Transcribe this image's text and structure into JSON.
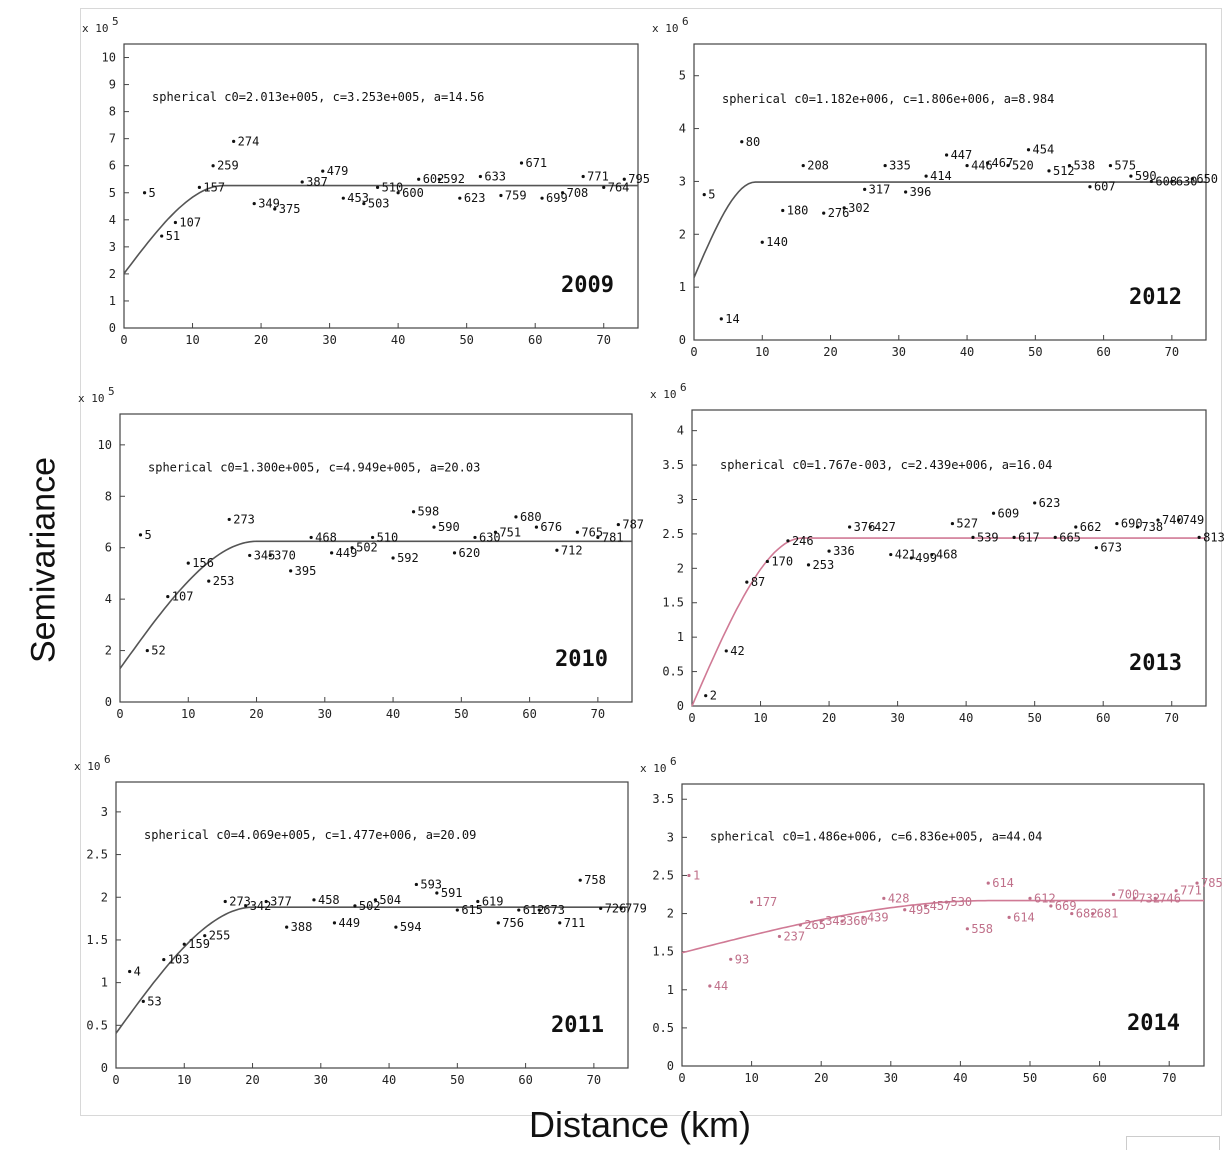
{
  "ylabel": "Semivariance",
  "xlabel": "Distance (km)",
  "colors": {
    "axis": "#444444",
    "black": "#111111",
    "pink": "#d07a95",
    "gray": "#555555"
  },
  "chart_data": [
    {
      "type": "scatter",
      "year": "2009",
      "multiplier": "x 10",
      "exponent": "5",
      "annotation": "spherical  c0=2.013e+005, c=3.253e+005, a=14.56",
      "xlim": [
        0,
        75
      ],
      "ylim": [
        0,
        10.5
      ],
      "xticks": [
        0,
        10,
        20,
        30,
        40,
        50,
        60,
        70
      ],
      "yticks": [
        0,
        1,
        2,
        3,
        4,
        5,
        6,
        7,
        8,
        9,
        10
      ],
      "ytick_labels": [
        "0",
        "1",
        "2",
        "3",
        "4",
        "5",
        "6",
        "7",
        "8",
        "9",
        "10"
      ],
      "model": {
        "c0": 2.013,
        "c": 3.253,
        "a": 14.56
      },
      "point_color": "#111111",
      "line_color": "#555555",
      "points": [
        {
          "label": "5",
          "x": 3,
          "y": 5.0
        },
        {
          "label": "51",
          "x": 5.5,
          "y": 3.4
        },
        {
          "label": "107",
          "x": 7.5,
          "y": 3.9
        },
        {
          "label": "157",
          "x": 11,
          "y": 5.2
        },
        {
          "label": "259",
          "x": 13,
          "y": 6.0
        },
        {
          "label": "274",
          "x": 16,
          "y": 6.9
        },
        {
          "label": "349",
          "x": 19,
          "y": 4.6
        },
        {
          "label": "375",
          "x": 22,
          "y": 4.4
        },
        {
          "label": "387",
          "x": 26,
          "y": 5.4
        },
        {
          "label": "479",
          "x": 29,
          "y": 5.8
        },
        {
          "label": "453",
          "x": 32,
          "y": 4.8
        },
        {
          "label": "503",
          "x": 35,
          "y": 4.6
        },
        {
          "label": "510",
          "x": 37,
          "y": 5.2
        },
        {
          "label": "600",
          "x": 40,
          "y": 5.0
        },
        {
          "label": "602",
          "x": 43,
          "y": 5.5
        },
        {
          "label": "592",
          "x": 46,
          "y": 5.5
        },
        {
          "label": "623",
          "x": 49,
          "y": 4.8
        },
        {
          "label": "633",
          "x": 52,
          "y": 5.6
        },
        {
          "label": "759",
          "x": 55,
          "y": 4.9
        },
        {
          "label": "671",
          "x": 58,
          "y": 6.1
        },
        {
          "label": "699",
          "x": 61,
          "y": 4.8
        },
        {
          "label": "708",
          "x": 64,
          "y": 5.0
        },
        {
          "label": "771",
          "x": 67,
          "y": 5.6
        },
        {
          "label": "764",
          "x": 70,
          "y": 5.2
        },
        {
          "label": "795",
          "x": 73,
          "y": 5.5
        }
      ]
    },
    {
      "type": "scatter",
      "year": "2012",
      "multiplier": "x 10",
      "exponent": "6",
      "annotation": "spherical  c0=1.182e+006, c=1.806e+006, a=8.984",
      "xlim": [
        0,
        75
      ],
      "ylim": [
        0,
        5.6
      ],
      "xticks": [
        0,
        10,
        20,
        30,
        40,
        50,
        60,
        70
      ],
      "yticks": [
        0,
        1,
        2,
        3,
        4,
        5
      ],
      "ytick_labels": [
        "0",
        "1",
        "2",
        "3",
        "4",
        "5"
      ],
      "model": {
        "c0": 1.182,
        "c": 1.806,
        "a": 8.984
      },
      "point_color": "#111111",
      "line_color": "#555555",
      "points": [
        {
          "label": "5",
          "x": 1.5,
          "y": 2.75
        },
        {
          "label": "14",
          "x": 4,
          "y": 0.4
        },
        {
          "label": "80",
          "x": 7,
          "y": 3.75
        },
        {
          "label": "140",
          "x": 10,
          "y": 1.85
        },
        {
          "label": "180",
          "x": 13,
          "y": 2.45
        },
        {
          "label": "208",
          "x": 16,
          "y": 3.3
        },
        {
          "label": "276",
          "x": 19,
          "y": 2.4
        },
        {
          "label": "302",
          "x": 22,
          "y": 2.5
        },
        {
          "label": "317",
          "x": 25,
          "y": 2.85
        },
        {
          "label": "335",
          "x": 28,
          "y": 3.3
        },
        {
          "label": "396",
          "x": 31,
          "y": 2.8
        },
        {
          "label": "414",
          "x": 34,
          "y": 3.1
        },
        {
          "label": "447",
          "x": 37,
          "y": 3.5
        },
        {
          "label": "446",
          "x": 40,
          "y": 3.3
        },
        {
          "label": "467",
          "x": 43,
          "y": 3.35
        },
        {
          "label": "520",
          "x": 46,
          "y": 3.3
        },
        {
          "label": "454",
          "x": 49,
          "y": 3.6
        },
        {
          "label": "512",
          "x": 52,
          "y": 3.2
        },
        {
          "label": "538",
          "x": 55,
          "y": 3.3
        },
        {
          "label": "607",
          "x": 58,
          "y": 2.9
        },
        {
          "label": "575",
          "x": 61,
          "y": 3.3
        },
        {
          "label": "590",
          "x": 64,
          "y": 3.1
        },
        {
          "label": "608",
          "x": 67,
          "y": 3.0
        },
        {
          "label": "630",
          "x": 70,
          "y": 3.0
        },
        {
          "label": "650",
          "x": 73,
          "y": 3.05
        }
      ]
    },
    {
      "type": "scatter",
      "year": "2010",
      "multiplier": "x 10",
      "exponent": "5",
      "annotation": "spherical  c0=1.300e+005, c=4.949e+005, a=20.03",
      "xlim": [
        0,
        75
      ],
      "ylim": [
        0,
        11.2
      ],
      "xticks": [
        0,
        10,
        20,
        30,
        40,
        50,
        60,
        70
      ],
      "yticks": [
        0,
        2,
        4,
        6,
        8,
        10
      ],
      "ytick_labels": [
        "0",
        "2",
        "4",
        "6",
        "8",
        "10"
      ],
      "model": {
        "c0": 1.3,
        "c": 4.949,
        "a": 20.03
      },
      "point_color": "#111111",
      "line_color": "#555555",
      "points": [
        {
          "label": "5",
          "x": 3,
          "y": 6.5
        },
        {
          "label": "52",
          "x": 4,
          "y": 2.0
        },
        {
          "label": "107",
          "x": 7,
          "y": 4.1
        },
        {
          "label": "156",
          "x": 10,
          "y": 5.4
        },
        {
          "label": "253",
          "x": 13,
          "y": 4.7
        },
        {
          "label": "273",
          "x": 16,
          "y": 7.1
        },
        {
          "label": "345",
          "x": 19,
          "y": 5.7
        },
        {
          "label": "370",
          "x": 22,
          "y": 5.7
        },
        {
          "label": "395",
          "x": 25,
          "y": 5.1
        },
        {
          "label": "468",
          "x": 28,
          "y": 6.4
        },
        {
          "label": "449",
          "x": 31,
          "y": 5.8
        },
        {
          "label": "502",
          "x": 34,
          "y": 6.0
        },
        {
          "label": "510",
          "x": 37,
          "y": 6.4
        },
        {
          "label": "592",
          "x": 40,
          "y": 5.6
        },
        {
          "label": "598",
          "x": 43,
          "y": 7.4
        },
        {
          "label": "590",
          "x": 46,
          "y": 6.8
        },
        {
          "label": "620",
          "x": 49,
          "y": 5.8
        },
        {
          "label": "630",
          "x": 52,
          "y": 6.4
        },
        {
          "label": "751",
          "x": 55,
          "y": 6.6
        },
        {
          "label": "680",
          "x": 58,
          "y": 7.2
        },
        {
          "label": "676",
          "x": 61,
          "y": 6.8
        },
        {
          "label": "712",
          "x": 64,
          "y": 5.9
        },
        {
          "label": "765",
          "x": 67,
          "y": 6.6
        },
        {
          "label": "781",
          "x": 70,
          "y": 6.4
        },
        {
          "label": "787",
          "x": 73,
          "y": 6.9
        }
      ]
    },
    {
      "type": "scatter",
      "year": "2013",
      "multiplier": "x 10",
      "exponent": "6",
      "annotation": "spherical  c0=1.767e-003, c=2.439e+006, a=16.04",
      "xlim": [
        0,
        75
      ],
      "ylim": [
        0,
        4.3
      ],
      "xticks": [
        0,
        10,
        20,
        30,
        40,
        50,
        60,
        70
      ],
      "yticks": [
        0,
        0.5,
        1,
        1.5,
        2,
        2.5,
        3,
        3.5,
        4
      ],
      "ytick_labels": [
        "0",
        "0.5",
        "1",
        "1.5",
        "2",
        "2.5",
        "3",
        "3.5",
        "4"
      ],
      "model": {
        "c0": 0.0,
        "c": 2.439,
        "a": 16.04
      },
      "point_color": "#111111",
      "line_color": "#d07a95",
      "points": [
        {
          "label": "2",
          "x": 2,
          "y": 0.15
        },
        {
          "label": "42",
          "x": 5,
          "y": 0.8
        },
        {
          "label": "87",
          "x": 8,
          "y": 1.8
        },
        {
          "label": "170",
          "x": 11,
          "y": 2.1
        },
        {
          "label": "246",
          "x": 14,
          "y": 2.4
        },
        {
          "label": "253",
          "x": 17,
          "y": 2.05
        },
        {
          "label": "336",
          "x": 20,
          "y": 2.25
        },
        {
          "label": "376",
          "x": 23,
          "y": 2.6
        },
        {
          "label": "427",
          "x": 26,
          "y": 2.6
        },
        {
          "label": "421",
          "x": 29,
          "y": 2.2
        },
        {
          "label": "499",
          "x": 32,
          "y": 2.15
        },
        {
          "label": "468",
          "x": 35,
          "y": 2.2
        },
        {
          "label": "527",
          "x": 38,
          "y": 2.65
        },
        {
          "label": "539",
          "x": 41,
          "y": 2.45
        },
        {
          "label": "609",
          "x": 44,
          "y": 2.8
        },
        {
          "label": "617",
          "x": 47,
          "y": 2.45
        },
        {
          "label": "623",
          "x": 50,
          "y": 2.95
        },
        {
          "label": "665",
          "x": 53,
          "y": 2.45
        },
        {
          "label": "662",
          "x": 56,
          "y": 2.6
        },
        {
          "label": "673",
          "x": 59,
          "y": 2.3
        },
        {
          "label": "690",
          "x": 62,
          "y": 2.65
        },
        {
          "label": "738",
          "x": 65,
          "y": 2.6
        },
        {
          "label": "740",
          "x": 68,
          "y": 2.7
        },
        {
          "label": "749",
          "x": 71,
          "y": 2.7
        },
        {
          "label": "813",
          "x": 74,
          "y": 2.45
        }
      ]
    },
    {
      "type": "scatter",
      "year": "2011",
      "multiplier": "x 10",
      "exponent": "6",
      "annotation": "spherical  c0=4.069e+005, c=1.477e+006, a=20.09",
      "xlim": [
        0,
        75
      ],
      "ylim": [
        0,
        3.35
      ],
      "xticks": [
        0,
        10,
        20,
        30,
        40,
        50,
        60,
        70
      ],
      "yticks": [
        0,
        0.5,
        1,
        1.5,
        2,
        2.5,
        3
      ],
      "ytick_labels": [
        "0",
        "0.5",
        "1",
        "1.5",
        "2",
        "2.5",
        "3"
      ],
      "model": {
        "c0": 0.4069,
        "c": 1.477,
        "a": 20.09
      },
      "point_color": "#111111",
      "line_color": "#555555",
      "points": [
        {
          "label": "4",
          "x": 2,
          "y": 1.13
        },
        {
          "label": "53",
          "x": 4,
          "y": 0.78
        },
        {
          "label": "103",
          "x": 7,
          "y": 1.27
        },
        {
          "label": "159",
          "x": 10,
          "y": 1.45
        },
        {
          "label": "255",
          "x": 13,
          "y": 1.55
        },
        {
          "label": "273",
          "x": 16,
          "y": 1.95
        },
        {
          "label": "342",
          "x": 19,
          "y": 1.9
        },
        {
          "label": "377",
          "x": 22,
          "y": 1.95
        },
        {
          "label": "388",
          "x": 25,
          "y": 1.65
        },
        {
          "label": "458",
          "x": 29,
          "y": 1.97
        },
        {
          "label": "449",
          "x": 32,
          "y": 1.7
        },
        {
          "label": "502",
          "x": 35,
          "y": 1.9
        },
        {
          "label": "504",
          "x": 38,
          "y": 1.97
        },
        {
          "label": "594",
          "x": 41,
          "y": 1.65
        },
        {
          "label": "593",
          "x": 44,
          "y": 2.15
        },
        {
          "label": "591",
          "x": 47,
          "y": 2.05
        },
        {
          "label": "615",
          "x": 50,
          "y": 1.85
        },
        {
          "label": "619",
          "x": 53,
          "y": 1.95
        },
        {
          "label": "756",
          "x": 56,
          "y": 1.7
        },
        {
          "label": "612",
          "x": 59,
          "y": 1.85
        },
        {
          "label": "673",
          "x": 62,
          "y": 1.85
        },
        {
          "label": "711",
          "x": 65,
          "y": 1.7
        },
        {
          "label": "758",
          "x": 68,
          "y": 2.2
        },
        {
          "label": "726",
          "x": 71,
          "y": 1.87
        },
        {
          "label": "779",
          "x": 74,
          "y": 1.87
        }
      ]
    },
    {
      "type": "scatter",
      "year": "2014",
      "multiplier": "x 10",
      "exponent": "6",
      "annotation": "spherical  c0=1.486e+006, c=6.836e+005, a=44.04",
      "xlim": [
        0,
        75
      ],
      "ylim": [
        0,
        3.7
      ],
      "xticks": [
        0,
        10,
        20,
        30,
        40,
        50,
        60,
        70
      ],
      "yticks": [
        0,
        0.5,
        1,
        1.5,
        2,
        2.5,
        3,
        3.5
      ],
      "ytick_labels": [
        "0",
        "0.5",
        "1",
        "1.5",
        "2",
        "2.5",
        "3",
        "3.5"
      ],
      "model": {
        "c0": 1.486,
        "c": 0.6836,
        "a": 44.04
      },
      "point_color": "#c0708a",
      "line_color": "#d07a95",
      "points": [
        {
          "label": "1",
          "x": 1,
          "y": 2.5
        },
        {
          "label": "44",
          "x": 4,
          "y": 1.05
        },
        {
          "label": "93",
          "x": 7,
          "y": 1.4
        },
        {
          "label": "177",
          "x": 10,
          "y": 2.15
        },
        {
          "label": "237",
          "x": 14,
          "y": 1.7
        },
        {
          "label": "265",
          "x": 17,
          "y": 1.85
        },
        {
          "label": "343",
          "x": 20,
          "y": 1.9
        },
        {
          "label": "360",
          "x": 23,
          "y": 1.9
        },
        {
          "label": "439",
          "x": 26,
          "y": 1.95
        },
        {
          "label": "428",
          "x": 29,
          "y": 2.2
        },
        {
          "label": "495",
          "x": 32,
          "y": 2.05
        },
        {
          "label": "457",
          "x": 35,
          "y": 2.1
        },
        {
          "label": "530",
          "x": 38,
          "y": 2.15
        },
        {
          "label": "558",
          "x": 41,
          "y": 1.8
        },
        {
          "label": "614",
          "x": 44,
          "y": 2.4
        },
        {
          "label": "614",
          "x": 47,
          "y": 1.95
        },
        {
          "label": "612",
          "x": 50,
          "y": 2.2
        },
        {
          "label": "669",
          "x": 53,
          "y": 2.1
        },
        {
          "label": "682",
          "x": 56,
          "y": 2.0
        },
        {
          "label": "681",
          "x": 59,
          "y": 2.0
        },
        {
          "label": "700",
          "x": 62,
          "y": 2.25
        },
        {
          "label": "732",
          "x": 65,
          "y": 2.2
        },
        {
          "label": "746",
          "x": 68,
          "y": 2.2
        },
        {
          "label": "771",
          "x": 71,
          "y": 2.3
        },
        {
          "label": "785",
          "x": 74,
          "y": 2.4
        }
      ]
    }
  ]
}
